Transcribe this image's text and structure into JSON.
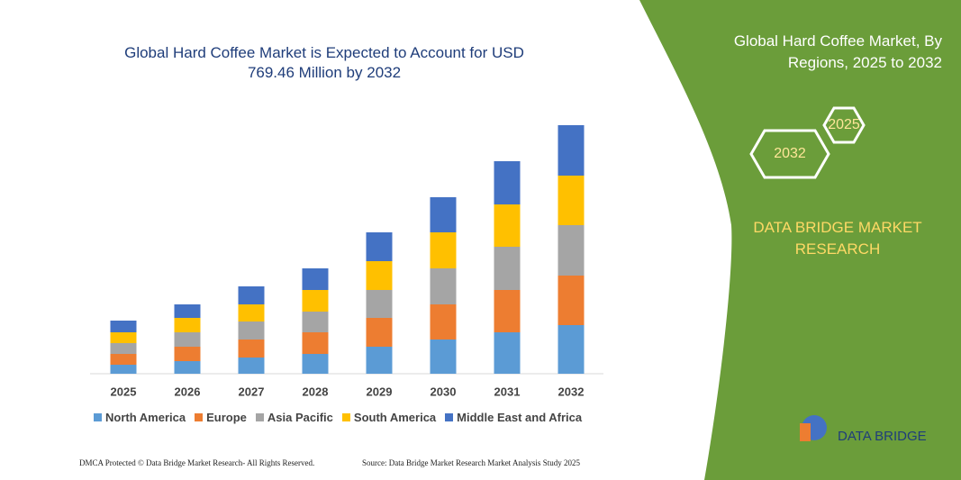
{
  "chart_data": {
    "type": "bar",
    "stacked": true,
    "title": "Global Hard Coffee Market is Expected to Account for USD 769.46 Million by 2032",
    "categories": [
      "2025",
      "2026",
      "2027",
      "2028",
      "2029",
      "2030",
      "2031",
      "2032"
    ],
    "series": [
      {
        "name": "North America",
        "color": "#5b9bd5",
        "values": [
          10,
          14,
          18,
          22,
          30,
          38,
          46,
          54
        ]
      },
      {
        "name": "Europe",
        "color": "#ed7d31",
        "values": [
          12,
          16,
          20,
          24,
          32,
          39,
          47,
          55
        ]
      },
      {
        "name": "Asia Pacific",
        "color": "#a5a5a5",
        "values": [
          12,
          16,
          20,
          23,
          31,
          40,
          48,
          56
        ]
      },
      {
        "name": "South America",
        "color": "#ffc000",
        "values": [
          12,
          16,
          19,
          24,
          32,
          40,
          47,
          55
        ]
      },
      {
        "name": "Middle East and Africa",
        "color": "#4472c4",
        "values": [
          13,
          15,
          20,
          24,
          32,
          39,
          48,
          56
        ]
      }
    ]
  },
  "panel": {
    "title": "Global Hard Coffee Market, By Regions, 2025 to 2032",
    "badges": [
      "2025",
      "2032"
    ],
    "brand": "DATA BRIDGE MARKET RESEARCH"
  },
  "footer": {
    "left": "DMCA Protected © Data Bridge Market Research- All Rights Reserved.",
    "right": "Source: Data Bridge Market Research Market Analysis Study 2025"
  },
  "logo": "DATA BRIDGE"
}
